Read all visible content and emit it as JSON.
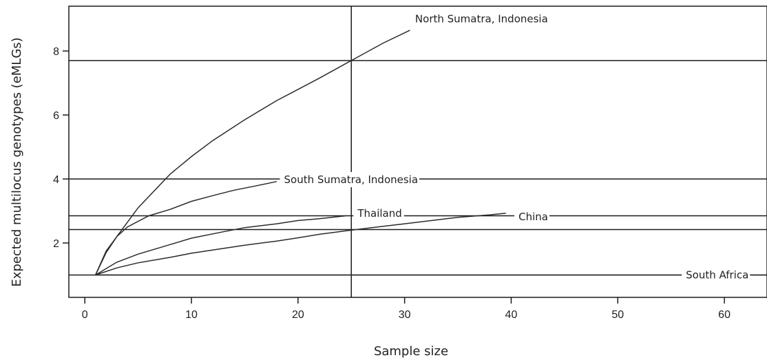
{
  "chart_data": {
    "type": "line",
    "title": "",
    "xlabel": "Sample size",
    "ylabel": "Expected multilocus genotypes (eMLGs)",
    "xlim": [
      -1.5,
      64
    ],
    "ylim": [
      0.3,
      9.4
    ],
    "xticks": [
      "0",
      "10",
      "20",
      "30",
      "40",
      "50",
      "60"
    ],
    "yticks": [
      "2",
      "4",
      "6",
      "8"
    ],
    "vertical_reference_line": 25,
    "horizontal_reference_lines": [
      7.7,
      4.0,
      2.85,
      2.42,
      1.0
    ],
    "grid": false,
    "series": [
      {
        "name": "North Sumatra, Indonesia",
        "x": [
          1,
          2,
          3,
          5,
          8,
          10,
          12,
          15,
          18,
          20,
          22,
          25,
          28,
          30.5
        ],
        "y": [
          1.0,
          1.7,
          2.2,
          3.1,
          4.15,
          4.7,
          5.2,
          5.85,
          6.45,
          6.8,
          7.15,
          7.7,
          8.25,
          8.65
        ]
      },
      {
        "name": "South Sumatra, Indonesia",
        "x": [
          1,
          2,
          3,
          4,
          6,
          8,
          10,
          12,
          14,
          16,
          18
        ],
        "y": [
          1.0,
          1.75,
          2.2,
          2.5,
          2.85,
          3.05,
          3.3,
          3.48,
          3.65,
          3.78,
          3.92
        ]
      },
      {
        "name": "Thailand",
        "x": [
          1,
          3,
          5,
          8,
          10,
          13,
          15,
          18,
          20,
          22,
          24.5
        ],
        "y": [
          1.0,
          1.4,
          1.65,
          1.95,
          2.15,
          2.35,
          2.48,
          2.6,
          2.7,
          2.76,
          2.85
        ]
      },
      {
        "name": "China",
        "x": [
          1,
          3,
          5,
          8,
          10,
          13,
          15,
          18,
          20,
          22,
          25,
          28,
          30,
          33,
          35,
          38,
          39.5
        ],
        "y": [
          1.0,
          1.22,
          1.38,
          1.55,
          1.68,
          1.83,
          1.93,
          2.06,
          2.16,
          2.27,
          2.4,
          2.52,
          2.6,
          2.72,
          2.8,
          2.88,
          2.93
        ]
      },
      {
        "name": "South Africa",
        "x": [
          1,
          64
        ],
        "y": [
          1.0,
          1.0
        ]
      }
    ],
    "annotations": [
      {
        "text": "North Sumatra, Indonesia",
        "x": 30.6,
        "y": 9.0
      },
      {
        "text": "South Sumatra, Indonesia",
        "x": 18.3,
        "y": 3.98
      },
      {
        "text": "Thailand",
        "x": 25.2,
        "y": 2.92
      },
      {
        "text": "China",
        "x": 40.3,
        "y": 2.82
      },
      {
        "text": "South Africa",
        "x": 56.0,
        "y": 1.0
      }
    ]
  }
}
